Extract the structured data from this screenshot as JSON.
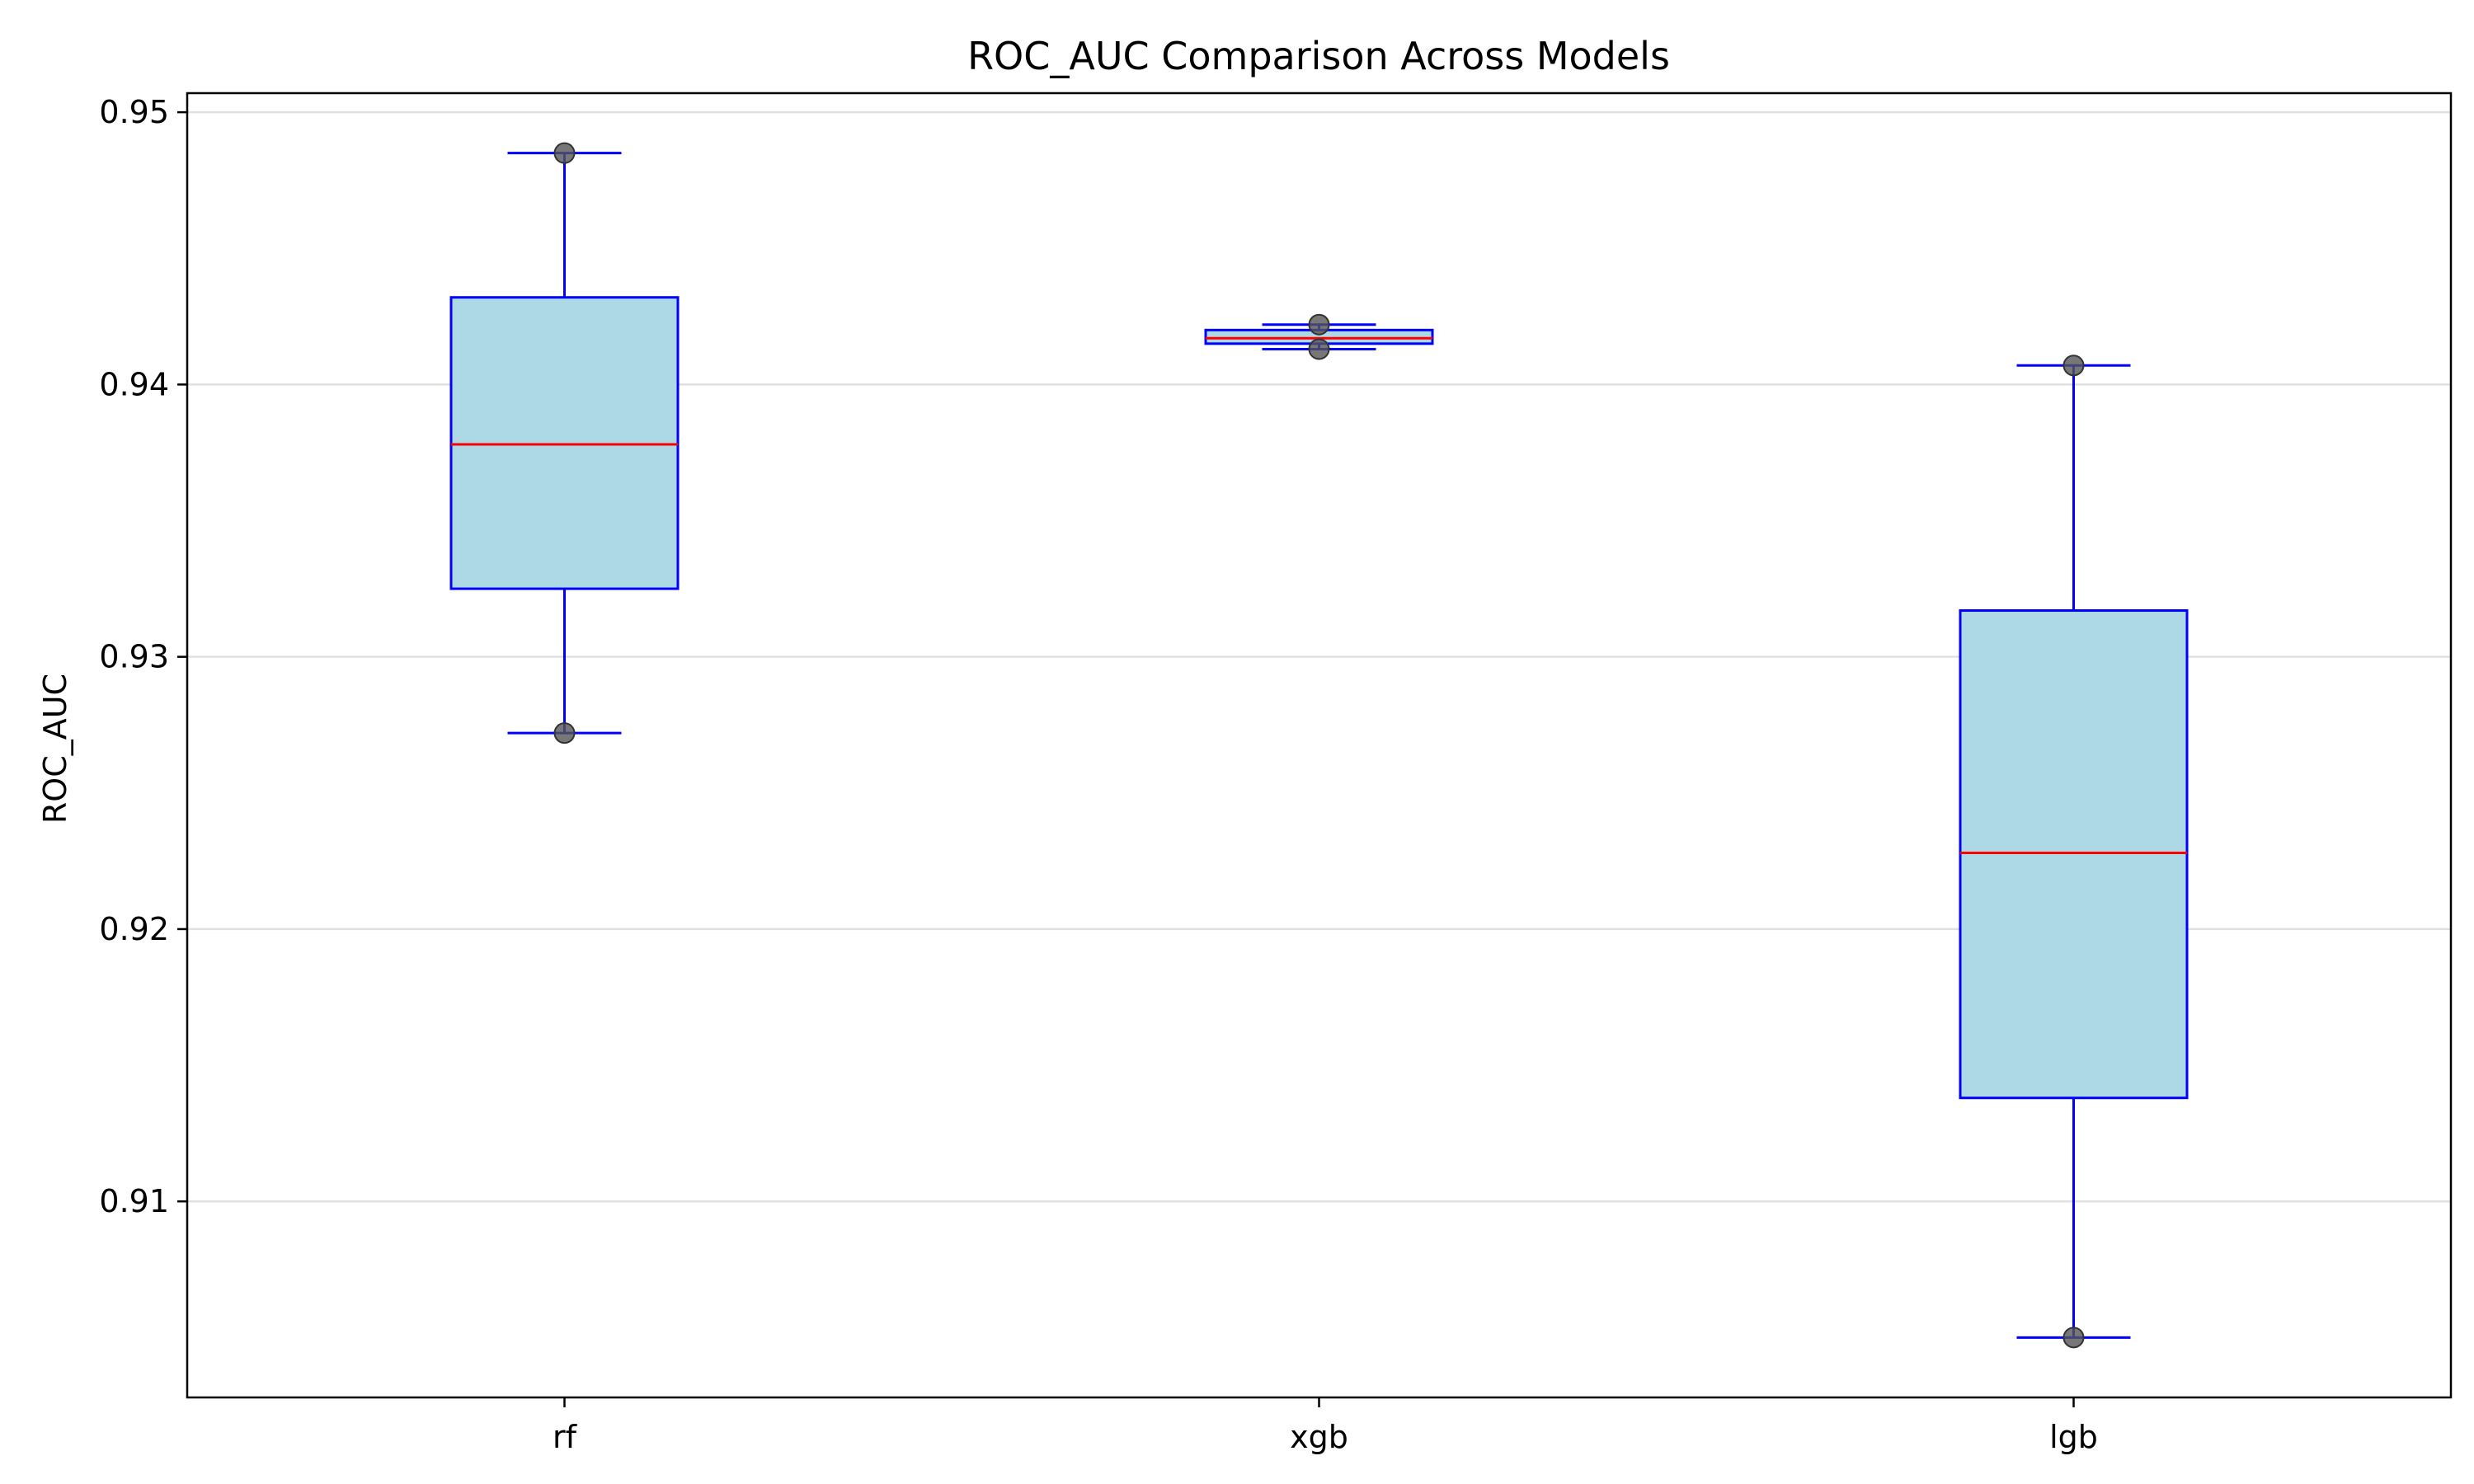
{
  "chart_data": {
    "type": "box",
    "title": "ROC_AUC Comparison Across Models",
    "xlabel": "",
    "ylabel": "ROC_AUC",
    "categories": [
      "rf",
      "xgb",
      "lgb"
    ],
    "boxes": [
      {
        "category": "rf",
        "whisker_low": 0.9272,
        "q1": 0.9325,
        "median": 0.9378,
        "q3": 0.9432,
        "whisker_high": 0.9485,
        "points": [
          0.9485,
          0.9272
        ]
      },
      {
        "category": "xgb",
        "whisker_low": 0.9413,
        "q1": 0.9415,
        "median": 0.9417,
        "q3": 0.942,
        "whisker_high": 0.9422,
        "points": [
          0.9422,
          0.9413
        ]
      },
      {
        "category": "lgb",
        "whisker_low": 0.905,
        "q1": 0.9138,
        "median": 0.9228,
        "q3": 0.9317,
        "whisker_high": 0.9407,
        "points": [
          0.9407,
          0.905
        ]
      }
    ],
    "ylim": [
      0.9028,
      0.9507
    ],
    "yticks": [
      0.91,
      0.92,
      0.93,
      0.94,
      0.95
    ],
    "ytick_labels": [
      "0.91",
      "0.92",
      "0.93",
      "0.94",
      "0.95"
    ],
    "grid": "y",
    "legend": "none",
    "colors": {
      "box_fill": "#add8e6",
      "box_edge": "#0000ff",
      "median": "#ff0000",
      "points": "#555555",
      "grid": "#e0e0e0",
      "axes": "#000000"
    }
  }
}
